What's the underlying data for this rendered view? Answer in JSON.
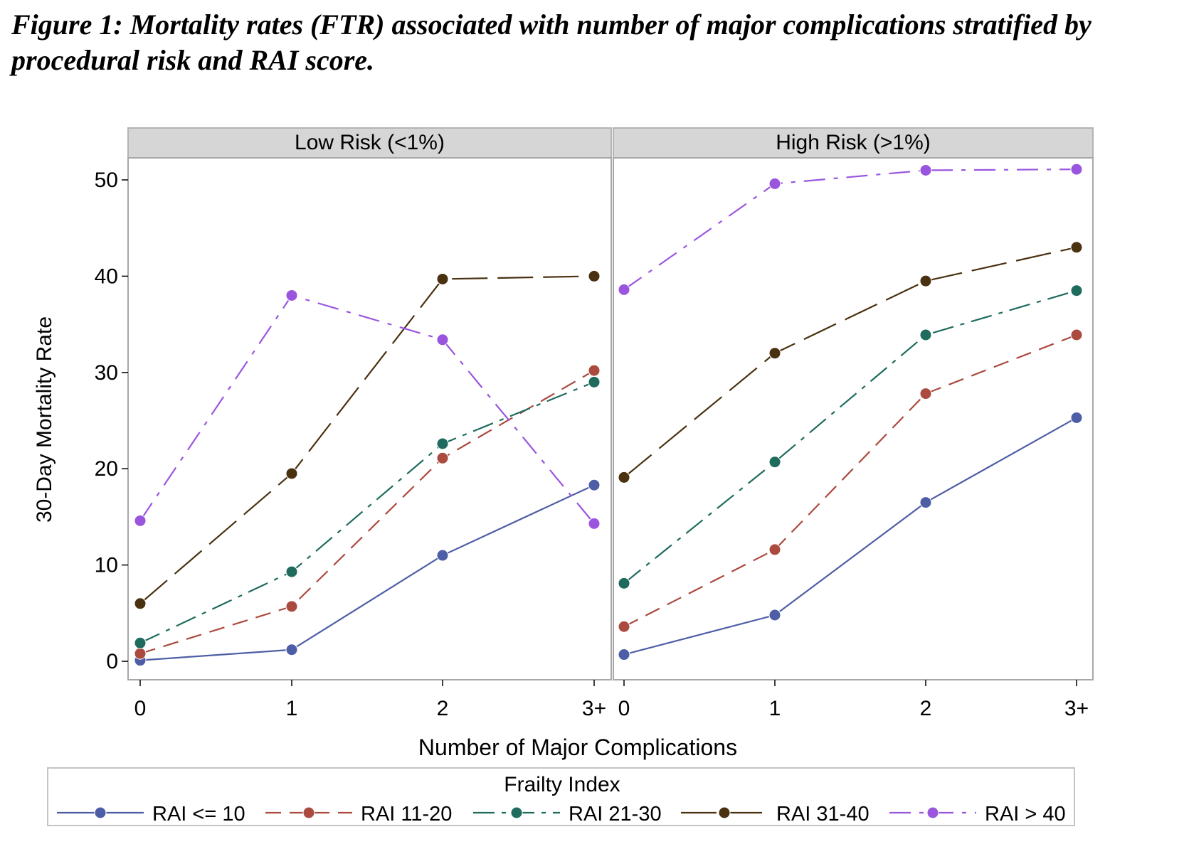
{
  "caption": {
    "label": "Figure 1",
    "text": ": Mortality rates (FTR) associated with number of major complications stratified by procedural risk and RAI score."
  },
  "chart_data": {
    "type": "line",
    "ylabel": "30-Day Mortality Rate",
    "xlabel": "Number of Major Complications",
    "categories": [
      "0",
      "1",
      "2",
      "3+"
    ],
    "ylim": [
      0,
      52
    ],
    "yticks": [
      0,
      10,
      20,
      30,
      40,
      50
    ],
    "grid": false,
    "legend": {
      "title": "Frailty Index",
      "position": "bottom",
      "entries": [
        "RAI <= 10",
        "RAI 11-20",
        "RAI 21-30",
        "RAI 31-40",
        "RAI > 40"
      ]
    },
    "series_colors": [
      "#4e5ea6",
      "#ab4a3f",
      "#1f6b5e",
      "#4a3110",
      "#9a55df"
    ],
    "panels": [
      {
        "title": "Low Risk (<1%)",
        "series": [
          {
            "name": "RAI <= 10",
            "values": [
              0.1,
              1.2,
              11.0,
              18.3
            ]
          },
          {
            "name": "RAI 11-20",
            "values": [
              0.8,
              5.7,
              21.1,
              30.2
            ]
          },
          {
            "name": "RAI 21-30",
            "values": [
              1.9,
              9.3,
              22.6,
              29.0
            ]
          },
          {
            "name": "RAI 31-40",
            "values": [
              6.0,
              19.5,
              39.7,
              40.0
            ]
          },
          {
            "name": "RAI > 40",
            "values": [
              14.6,
              38.0,
              33.4,
              14.3
            ]
          }
        ]
      },
      {
        "title": "High Risk (>1%)",
        "series": [
          {
            "name": "RAI <= 10",
            "values": [
              0.7,
              4.8,
              16.5,
              25.3
            ]
          },
          {
            "name": "RAI 11-20",
            "values": [
              3.6,
              11.6,
              27.8,
              33.9
            ]
          },
          {
            "name": "RAI 21-30",
            "values": [
              8.1,
              20.7,
              33.9,
              38.5
            ]
          },
          {
            "name": "RAI 31-40",
            "values": [
              19.1,
              32.0,
              39.5,
              43.0
            ]
          },
          {
            "name": "RAI > 40",
            "values": [
              38.6,
              49.6,
              51.0,
              51.1
            ]
          }
        ]
      }
    ]
  }
}
